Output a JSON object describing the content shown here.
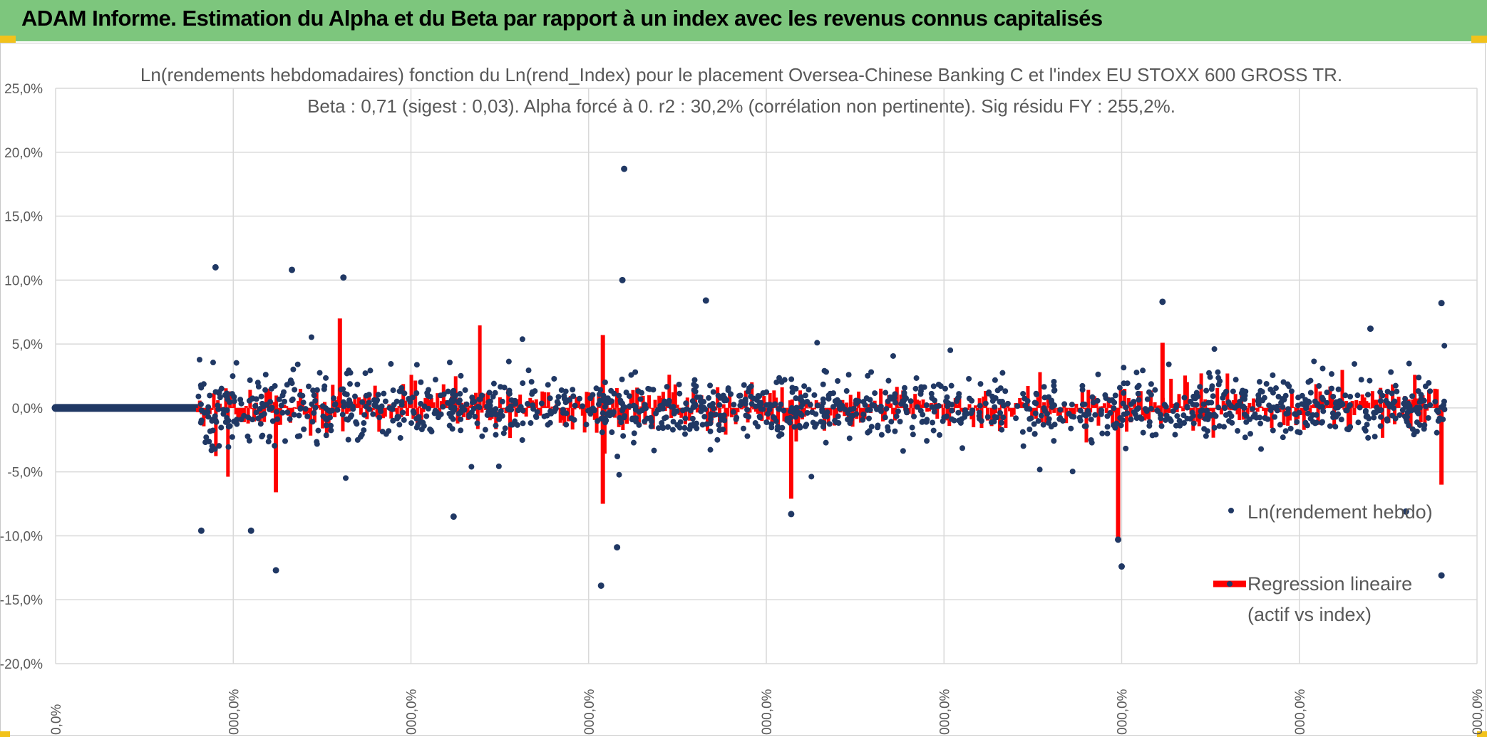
{
  "header": {
    "title": "ADAM Informe. Estimation du Alpha et du Beta par rapport à un index avec les revenus connus capitalisés"
  },
  "colors": {
    "header_bg": "#7dc67d",
    "accent_yellow": "#f2c21b",
    "points": "#203864",
    "regression": "#ff0000",
    "grid": "#d9d9d9",
    "text": "#595959"
  },
  "chart_data": {
    "type": "scatter",
    "title": "Ln(rendements hebdomadaires) fonction du Ln(rend_Index) pour le placement Oversea-Chinese Banking C et l'index EU STOXX 600 GROSS TR.",
    "subtitle": "Beta : 0,71 (sigest : 0,03). Alpha forcé à 0. r2 : 30,2% (corrélation non pertinente). Sig résidu FY : 255,2%.",
    "y_tick_labels": [
      "25,0%",
      "20,0%",
      "15,0%",
      "10,0%",
      "5,0%",
      "0,0%",
      "-5,0%",
      "-10,0%",
      "-15,0%",
      "-20,0%"
    ],
    "ylim": [
      -20,
      25
    ],
    "x_tick_labels": [
      "0,0%",
      "000,0%",
      "000,0%",
      "000,0%",
      "000,0%",
      "000,0%",
      "000,0%",
      "000,0%",
      "000,0%"
    ],
    "xlim": [
      0,
      8
    ],
    "legend": [
      "Ln(rendement hebdo)",
      "Regression lineaire",
      "(actif vs index)"
    ],
    "legend_position": "right",
    "series": [
      {
        "name": "Ln(rendement hebdo)",
        "type": "scatter",
        "notable_points": [
          {
            "x": 0.9,
            "y": 11.0
          },
          {
            "x": 1.33,
            "y": 10.8
          },
          {
            "x": 1.62,
            "y": 10.2
          },
          {
            "x": 3.2,
            "y": 18.7
          },
          {
            "x": 3.19,
            "y": 10.0
          },
          {
            "x": 3.66,
            "y": 8.4
          },
          {
            "x": 6.23,
            "y": 8.3
          },
          {
            "x": 7.8,
            "y": 8.2
          },
          {
            "x": 7.4,
            "y": 6.2
          },
          {
            "x": 1.24,
            "y": -12.7
          },
          {
            "x": 3.07,
            "y": -13.9
          },
          {
            "x": 6.0,
            "y": -12.4
          },
          {
            "x": 7.8,
            "y": -13.1
          },
          {
            "x": 3.16,
            "y": -10.9
          },
          {
            "x": 5.98,
            "y": -10.3
          },
          {
            "x": 1.1,
            "y": -9.6
          },
          {
            "x": 0.82,
            "y": -9.6
          },
          {
            "x": 2.24,
            "y": -8.5
          },
          {
            "x": 4.14,
            "y": -8.3
          },
          {
            "x": 7.6,
            "y": -8.1
          }
        ]
      },
      {
        "name": "Regression lineaire (actif vs index)",
        "type": "line",
        "notable_values": [
          {
            "x": 1.6,
            "y": 7.0
          },
          {
            "x": 3.08,
            "y": 5.7
          },
          {
            "x": 6.23,
            "y": 5.1
          },
          {
            "x": 5.98,
            "y": -10.2
          },
          {
            "x": 3.08,
            "y": -7.5
          },
          {
            "x": 4.14,
            "y": -7.1
          },
          {
            "x": 1.24,
            "y": -6.6
          },
          {
            "x": 7.8,
            "y": -6.0
          }
        ]
      }
    ]
  }
}
